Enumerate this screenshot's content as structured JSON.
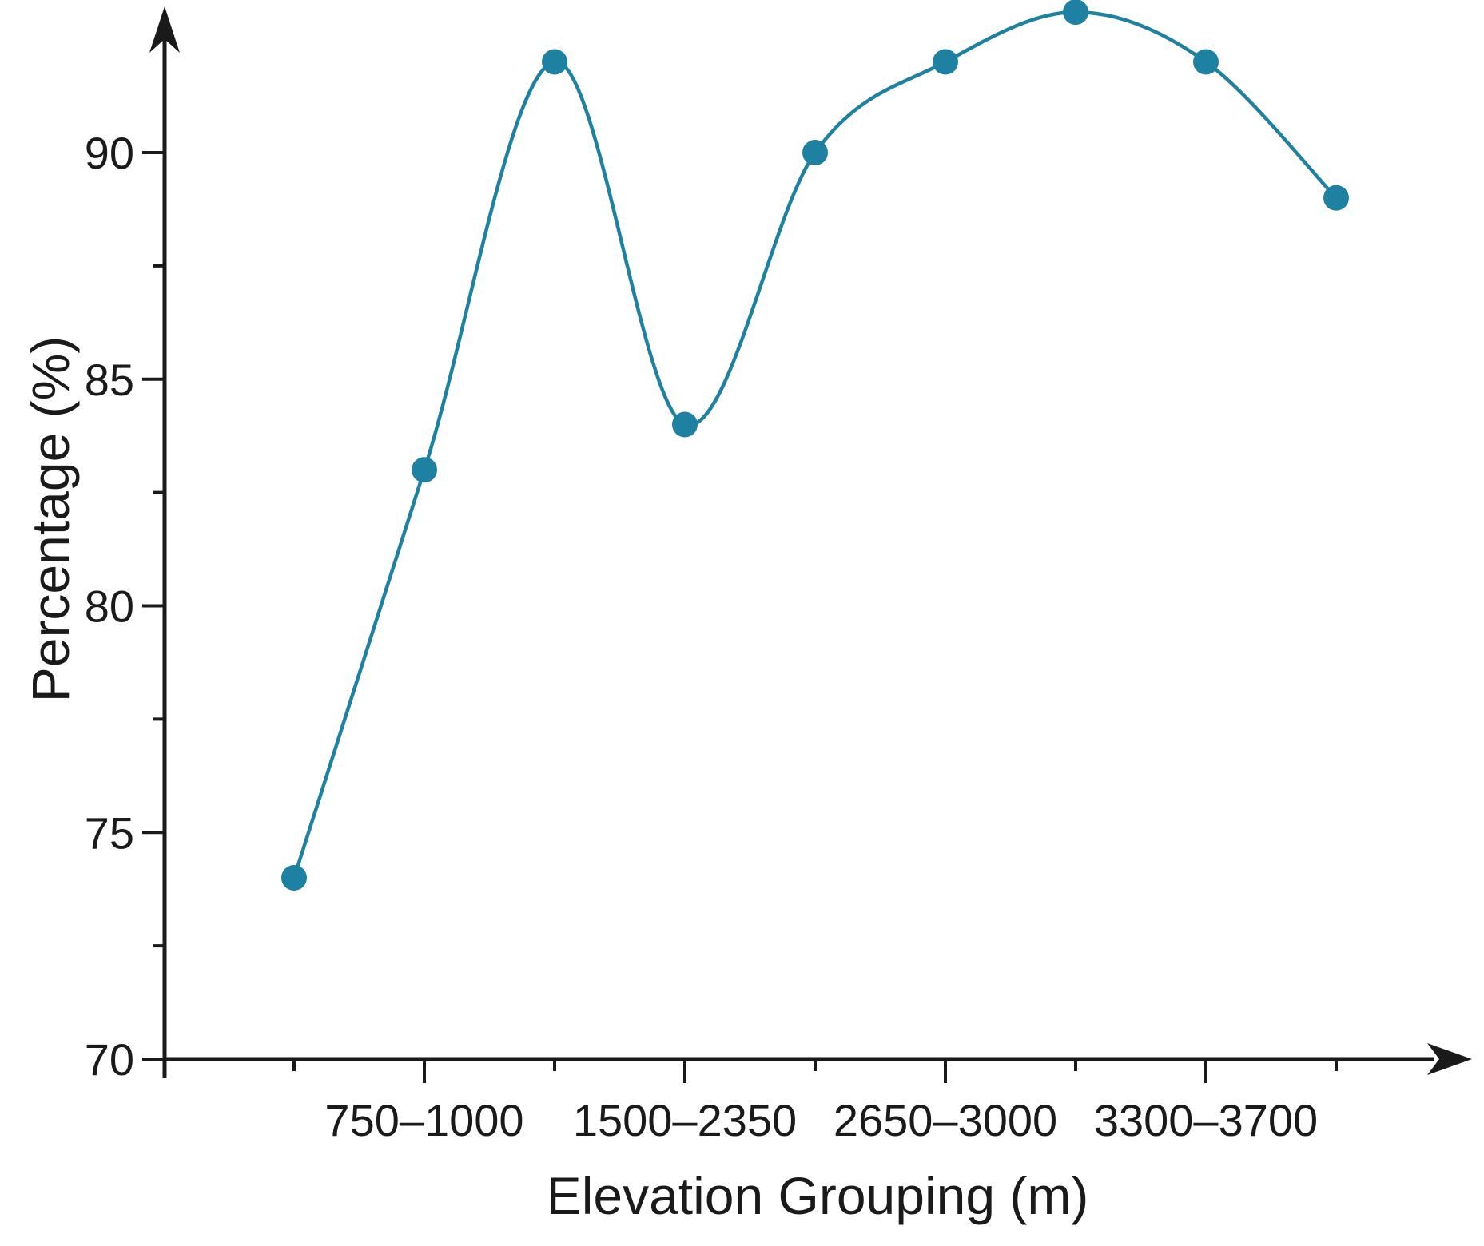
{
  "page": {
    "background": "#ffffff"
  },
  "chart_data": {
    "type": "line",
    "title": "",
    "xlabel": "Elevation Grouping (m)",
    "ylabel": "Percentage (%)",
    "grid": false,
    "legend_position": "none",
    "axis_color": "#1a1a1a",
    "x_axis": {
      "num_points": 9,
      "major_tick_labels": [
        "750–1000",
        "1500–2350",
        "2650–3000",
        "3300–3700"
      ],
      "major_tick_point_indices": [
        1,
        3,
        5,
        7
      ],
      "minor_tick_point_indices": [
        0,
        2,
        4,
        6,
        8
      ]
    },
    "y_axis": {
      "range": [
        70,
        93.5
      ],
      "major_ticks": [
        70,
        75,
        80,
        85,
        90
      ],
      "major_tick_labels": [
        "70",
        "75",
        "80",
        "85",
        "90"
      ],
      "minor_ticks": [
        72.5,
        77.5,
        82.5,
        87.5
      ]
    },
    "series": [
      {
        "name": "Percentage",
        "color": "#1e81a2",
        "marker": "circle",
        "smooth": true,
        "values": [
          74,
          83,
          92,
          84,
          90,
          92,
          93.1,
          92,
          89
        ]
      }
    ]
  }
}
